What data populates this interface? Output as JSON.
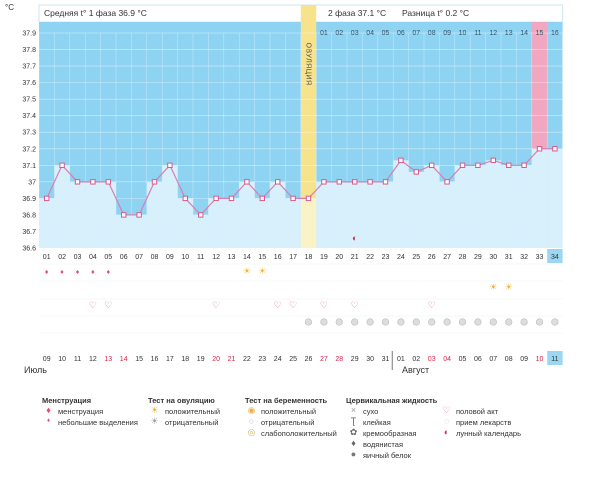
{
  "header": {
    "phase1_text": "Средняя t° 1 фаза 36.9 °C",
    "phase2_text": "2 фаза 37.1 °C",
    "diff_text": "Разница t° 0.2 °C"
  },
  "ovulation_label": "ОВУЛЯЦИЯ",
  "y_unit": "°C",
  "day_labels": [
    "01",
    "02",
    "03",
    "04",
    "05",
    "06",
    "07",
    "08",
    "09",
    "10",
    "11",
    "12",
    "13",
    "14",
    "15",
    "16",
    "17",
    "18",
    "19",
    "20",
    "21",
    "22",
    "23",
    "24",
    "25",
    "26",
    "27",
    "28",
    "29",
    "30",
    "31",
    "32",
    "33",
    "34"
  ],
  "top_day_numbers": [
    "01",
    "02",
    "03",
    "04",
    "05",
    "06",
    "07",
    "08",
    "09",
    "10",
    "11",
    "12",
    "13",
    "14",
    "15",
    "16"
  ],
  "date_labels": [
    "09",
    "10",
    "11",
    "12",
    "13",
    "14",
    "15",
    "16",
    "17",
    "18",
    "19",
    "20",
    "21",
    "22",
    "23",
    "24",
    "25",
    "26",
    "27",
    "28",
    "29",
    "30",
    "31",
    "01",
    "02",
    "03",
    "04",
    "05",
    "06",
    "07",
    "08",
    "09",
    "10",
    "11"
  ],
  "month_labels": {
    "july": "Июль",
    "august": "Август"
  },
  "colors": {
    "sky": "#8fd3f3",
    "bar": "#d8f0fc",
    "ovulation": "#f7e38c",
    "today": "#f2a7c1",
    "line": "#d77fb0",
    "point": "#d8598e",
    "weekend": "#d8244c",
    "highlight_day": "#9bd6f2"
  },
  "chart_data": {
    "type": "line",
    "ylabel": "°C",
    "ylim": [
      36.6,
      37.9
    ],
    "yticks": [
      "37.9",
      "37.8",
      "37.7",
      "37.6",
      "37.5",
      "37.4",
      "37.3",
      "37.2",
      "37.1",
      "37",
      "36.9",
      "36.8",
      "36.7",
      "36.6"
    ],
    "x": [
      1,
      2,
      3,
      4,
      5,
      6,
      7,
      8,
      9,
      10,
      11,
      12,
      13,
      14,
      15,
      16,
      17,
      18,
      19,
      20,
      21,
      22,
      23,
      24,
      25,
      26,
      27,
      28,
      29,
      30,
      31,
      32,
      33,
      34
    ],
    "series": [
      {
        "values": [
          36.9,
          37.1,
          37.0,
          37.0,
          37.0,
          36.8,
          36.8,
          37.0,
          37.1,
          36.9,
          36.8,
          36.9,
          36.9,
          37.0,
          36.9,
          37.0,
          36.9,
          36.9,
          37.0,
          37.0,
          37.0,
          37.0,
          37.0,
          37.13,
          37.06,
          37.1,
          37.0,
          37.1,
          37.1,
          37.13,
          37.1,
          37.1,
          37.2,
          37.2
        ]
      }
    ],
    "ovulation_day": 18,
    "current_day": 33
  },
  "markers": {
    "menstruation_days": [
      1,
      2,
      3,
      4,
      5
    ],
    "ovulation_test_positive_days": [
      14,
      15
    ],
    "ovulation_test_negative_days": [],
    "pregnancy_test_positive_days": [
      30,
      31
    ],
    "intercourse_days": [
      4,
      5,
      12,
      16,
      17,
      19,
      21,
      26
    ],
    "cervical_dry_days": [],
    "cervical_egg_white_days": [
      18,
      19,
      20,
      21,
      22,
      23,
      24,
      25,
      26,
      27,
      28,
      29,
      30,
      31,
      32,
      33,
      34
    ],
    "lunar_calendar_days": [
      21
    ]
  },
  "legend": {
    "menstruation": {
      "title": "Менструация",
      "items": [
        "менструация",
        "небольшие выделения"
      ]
    },
    "ovulation_test": {
      "title": "Тест на овуляцию",
      "items": [
        "положительный",
        "отрицательный"
      ]
    },
    "pregnancy_test": {
      "title": "Тест на беременность",
      "items": [
        "положительный",
        "отрицательный",
        "слабоположительный"
      ]
    },
    "cervical": {
      "title": "Цервикальная жидкость",
      "items": [
        "сухо",
        "клейкая",
        "кремообразная",
        "водянистая",
        "яичный белок"
      ]
    },
    "other": {
      "items": [
        "половой акт",
        "прием лекарств",
        "лунный календарь"
      ]
    }
  }
}
